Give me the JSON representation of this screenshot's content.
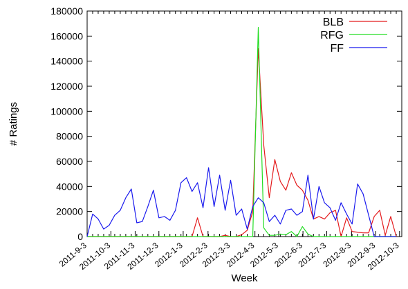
{
  "chart_data": {
    "type": "line",
    "title": "",
    "xlabel": "Week",
    "ylabel": "# Ratings",
    "ylim": [
      0,
      180000
    ],
    "yticks": [
      0,
      20000,
      40000,
      60000,
      80000,
      100000,
      120000,
      140000,
      160000,
      180000
    ],
    "ytick_labels": [
      "0",
      "20000",
      "40000",
      "60000",
      "80000",
      "100000",
      "120000",
      "140000",
      "160000",
      "180000"
    ],
    "x_tick_labels": [
      "2011-9-3",
      "2011-10-3",
      "2011-11-3",
      "2011-12-3",
      "2012-1-3",
      "2012-2-3",
      "2012-3-3",
      "2012-4-3",
      "2012-5-3",
      "2012-6-3",
      "2012-7-3",
      "2012-8-3",
      "2012-9-3",
      "2012-10-3"
    ],
    "x_tick_weeks": [
      0,
      4.3,
      8.7,
      13,
      17.4,
      21.9,
      26,
      30.4,
      34.7,
      39.1,
      43.4,
      47.9,
      52.3,
      56.6
    ],
    "xlim": [
      0,
      57
    ],
    "legend": "top-right",
    "grid": false,
    "series": [
      {
        "name": "BLB",
        "color": "#e41a1c",
        "values": [
          0,
          0,
          0,
          0,
          0,
          0,
          0,
          0,
          0,
          0,
          0,
          0,
          0,
          0,
          0,
          0,
          0,
          0,
          0,
          0,
          15000,
          0,
          0,
          0,
          0,
          1000,
          0,
          0,
          1500,
          5000,
          20000,
          150000,
          73000,
          31000,
          61500,
          44000,
          37000,
          51000,
          41000,
          37000,
          29000,
          14000,
          16000,
          14000,
          19000,
          21000,
          0,
          15000,
          4000,
          3500,
          3000,
          3000,
          16000,
          21000,
          1000,
          16000,
          0
        ]
      },
      {
        "name": "RFG",
        "color": "#22dd22",
        "values": [
          0,
          0,
          0,
          0,
          0,
          0,
          0,
          0,
          0,
          0,
          0,
          0,
          0,
          0,
          0,
          0,
          0,
          0,
          0,
          0,
          0,
          0,
          0,
          0,
          0,
          0,
          0,
          0,
          0,
          0,
          0,
          167000,
          7000,
          1000,
          1000,
          2000,
          1500,
          4000,
          0,
          8000,
          2000,
          0,
          0,
          0,
          0,
          0,
          0,
          0,
          0,
          0,
          0,
          0,
          0,
          0,
          0,
          0,
          0
        ]
      },
      {
        "name": "FF",
        "color": "#1a1aee",
        "values": [
          0,
          18000,
          14000,
          6000,
          9000,
          17000,
          21000,
          31000,
          38000,
          11000,
          12000,
          24000,
          37000,
          15000,
          16000,
          13000,
          21000,
          43000,
          47000,
          36000,
          43000,
          23000,
          55000,
          24000,
          49000,
          21000,
          45000,
          17000,
          22000,
          6000,
          24000,
          31000,
          27000,
          12000,
          17000,
          10000,
          21000,
          22000,
          17000,
          20000,
          49000,
          14000,
          40000,
          27000,
          23000,
          13000,
          27000,
          18000,
          10000,
          42000,
          34000,
          17000,
          0,
          0,
          0,
          0,
          0
        ]
      }
    ]
  }
}
